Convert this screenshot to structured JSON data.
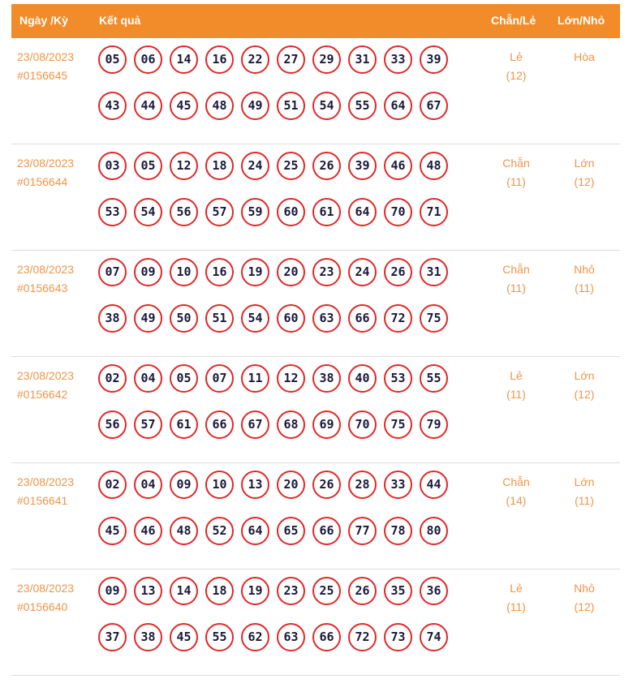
{
  "header": {
    "date": "Ngày /Kỳ",
    "result": "Kết quả",
    "parity": "Chẵn/Lẻ",
    "size": "Lớn/Nhỏ"
  },
  "rows": [
    {
      "date": "23/08/2023",
      "id": "#0156645",
      "numbers": [
        "05",
        "06",
        "14",
        "16",
        "22",
        "27",
        "29",
        "31",
        "33",
        "39",
        "43",
        "44",
        "45",
        "48",
        "49",
        "51",
        "54",
        "55",
        "64",
        "67"
      ],
      "parity": "Lẻ",
      "parity_count": "(12)",
      "size": "Hòa",
      "size_count": ""
    },
    {
      "date": "23/08/2023",
      "id": "#0156644",
      "numbers": [
        "03",
        "05",
        "12",
        "18",
        "24",
        "25",
        "26",
        "39",
        "46",
        "48",
        "53",
        "54",
        "56",
        "57",
        "59",
        "60",
        "61",
        "64",
        "70",
        "71"
      ],
      "parity": "Chẵn",
      "parity_count": "(11)",
      "size": "Lớn",
      "size_count": "(12)"
    },
    {
      "date": "23/08/2023",
      "id": "#0156643",
      "numbers": [
        "07",
        "09",
        "10",
        "16",
        "19",
        "20",
        "23",
        "24",
        "26",
        "31",
        "38",
        "49",
        "50",
        "51",
        "54",
        "60",
        "63",
        "66",
        "72",
        "75"
      ],
      "parity": "Chẵn",
      "parity_count": "(11)",
      "size": "Nhỏ",
      "size_count": "(11)"
    },
    {
      "date": "23/08/2023",
      "id": "#0156642",
      "numbers": [
        "02",
        "04",
        "05",
        "07",
        "11",
        "12",
        "38",
        "40",
        "53",
        "55",
        "56",
        "57",
        "61",
        "66",
        "67",
        "68",
        "69",
        "70",
        "75",
        "79"
      ],
      "parity": "Lẻ",
      "parity_count": "(11)",
      "size": "Lớn",
      "size_count": "(12)"
    },
    {
      "date": "23/08/2023",
      "id": "#0156641",
      "numbers": [
        "02",
        "04",
        "09",
        "10",
        "13",
        "20",
        "26",
        "28",
        "33",
        "44",
        "45",
        "46",
        "48",
        "52",
        "64",
        "65",
        "66",
        "77",
        "78",
        "80"
      ],
      "parity": "Chẵn",
      "parity_count": "(14)",
      "size": "Lớn",
      "size_count": "(11)"
    },
    {
      "date": "23/08/2023",
      "id": "#0156640",
      "numbers": [
        "09",
        "13",
        "14",
        "18",
        "19",
        "23",
        "25",
        "26",
        "35",
        "36",
        "37",
        "38",
        "45",
        "55",
        "62",
        "63",
        "66",
        "72",
        "73",
        "74"
      ],
      "parity": "Lẻ",
      "parity_count": "(11)",
      "size": "Nhỏ",
      "size_count": "(12)"
    }
  ]
}
